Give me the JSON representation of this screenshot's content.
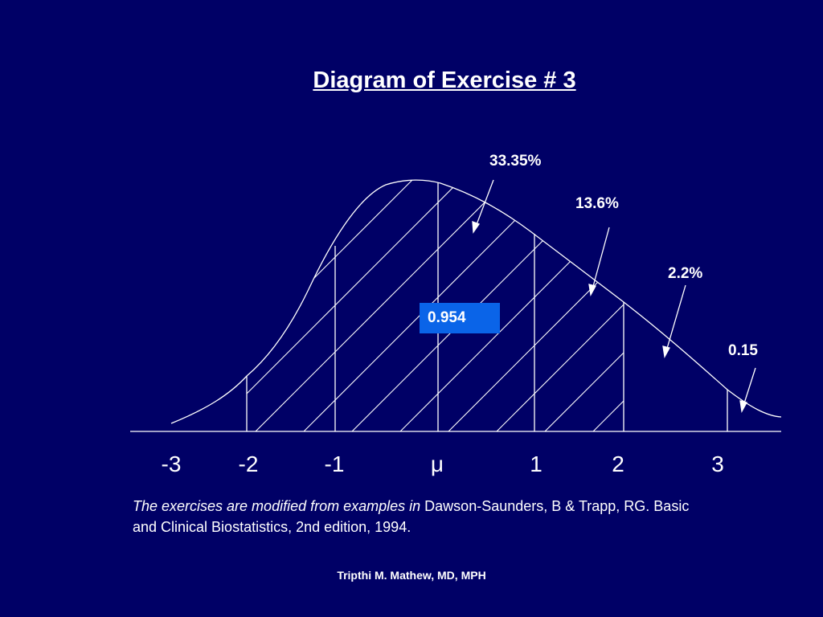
{
  "title": "Diagram of Exercise # 3",
  "value_box": "0.954",
  "percent_labels": {
    "p1": "33.35%",
    "p2": "13.6%",
    "p3": "2.2%",
    "p4": "0.15"
  },
  "x_ticks": [
    "-3",
    "-2",
    "-1",
    "μ",
    "1",
    "2",
    "3"
  ],
  "reference": {
    "italic": "The exercises are modified from examples in",
    "normal": "Dawson-Saunders, B & Trapp, RG. Basic and Clinical Biostatistics, 2nd edition, 1994."
  },
  "author": "Tripthi M. Mathew, MD, MPH",
  "colors": {
    "background": "#000066",
    "value_box": "#0a64e8",
    "lines": "#ffffff"
  }
}
